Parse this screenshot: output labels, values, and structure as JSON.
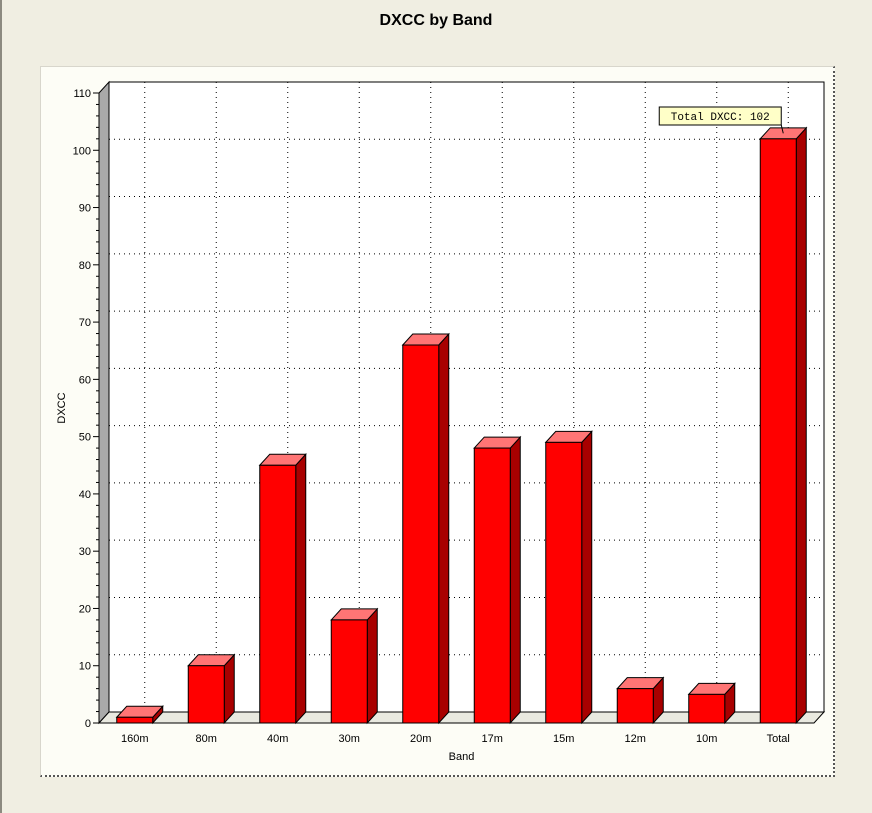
{
  "colors": {
    "bar_front": "#ff0000",
    "bar_top": "#ff7575",
    "bar_side": "#a80000",
    "floor": "#e9e9e0",
    "left_wall": "#a9a9a9",
    "annotation_bg": "#ffffc8"
  },
  "chart_data": {
    "type": "bar",
    "title": "DXCC by Band",
    "xlabel": "Band",
    "ylabel": "DXCC",
    "categories": [
      "160m",
      "80m",
      "40m",
      "30m",
      "20m",
      "17m",
      "15m",
      "12m",
      "10m",
      "Total"
    ],
    "values": [
      1,
      10,
      45,
      18,
      66,
      48,
      49,
      6,
      5,
      102
    ],
    "ylim": [
      0,
      110
    ],
    "yticks": [
      0,
      10,
      20,
      30,
      40,
      50,
      60,
      70,
      80,
      90,
      100,
      110
    ],
    "grid": true,
    "three_d": true,
    "annotation": {
      "text": "Total DXCC: 102",
      "category": "Total"
    }
  }
}
